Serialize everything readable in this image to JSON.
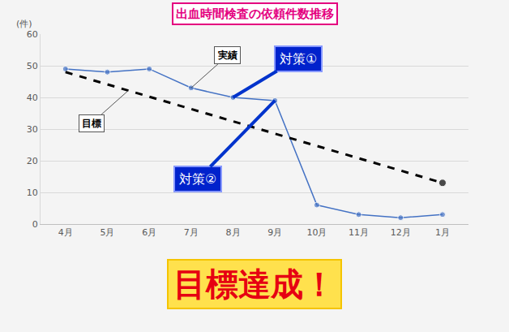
{
  "chart_data": {
    "type": "line",
    "title": "出血時間検査の依頼件数推移",
    "y_label": "(件)",
    "categories": [
      "4月",
      "5月",
      "6月",
      "7月",
      "8月",
      "9月",
      "10月",
      "11月",
      "12月",
      "1月"
    ],
    "series": [
      {
        "name": "実績",
        "color": "#4472c4",
        "marker": "circle",
        "line_style": "solid",
        "values": [
          49,
          48,
          49,
          43,
          40,
          39,
          6,
          3,
          2,
          3
        ]
      },
      {
        "name": "目標",
        "color": "#000000",
        "marker": "circle",
        "line_style": "dash",
        "values": [
          48,
          null,
          null,
          null,
          null,
          null,
          null,
          null,
          null,
          13
        ]
      }
    ],
    "ylim": [
      0,
      60
    ],
    "yticks": [
      0,
      10,
      20,
      30,
      40,
      50,
      60
    ],
    "grid": true,
    "annotations": [
      {
        "text": "対策①",
        "category": "8月"
      },
      {
        "text": "対策②",
        "category": "9月"
      }
    ],
    "banner": "目標達成！"
  }
}
